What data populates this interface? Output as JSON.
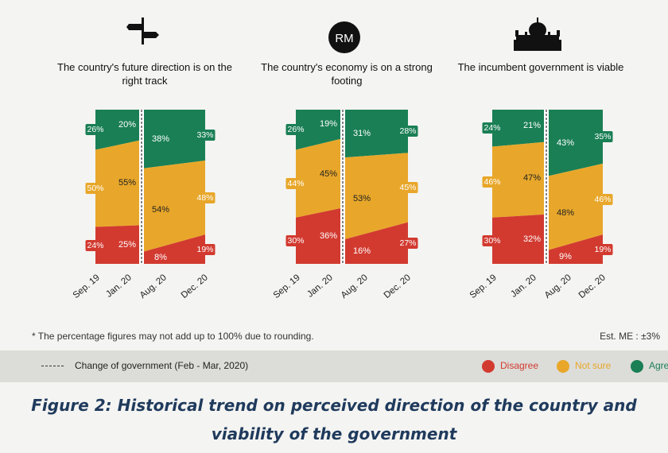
{
  "colors": {
    "disagree": "#d23a30",
    "not_sure": "#e8a72a",
    "agree": "#1a7f55",
    "divider": "#ffffff"
  },
  "chart_data": [
    {
      "type": "area",
      "title": "The country's future direction is on the right track",
      "icon": "signpost-icon",
      "categories": [
        "Sep. 19",
        "Jan. 20",
        "Aug. 20",
        "Dec. 20"
      ],
      "series": [
        {
          "name": "Disagree",
          "values": [
            24,
            25,
            8,
            19
          ]
        },
        {
          "name": "Not sure",
          "values": [
            50,
            55,
            54,
            48
          ]
        },
        {
          "name": "Agree",
          "values": [
            26,
            20,
            38,
            33
          ]
        }
      ],
      "ylim": [
        0,
        100
      ]
    },
    {
      "type": "area",
      "title": "The country's economy is on a strong footing",
      "icon": "ringgit-icon",
      "icon_text": "RM",
      "categories": [
        "Sep. 19",
        "Jan. 20",
        "Aug. 20",
        "Dec. 20"
      ],
      "series": [
        {
          "name": "Disagree",
          "values": [
            30,
            36,
            16,
            27
          ]
        },
        {
          "name": "Not sure",
          "values": [
            44,
            45,
            53,
            45
          ]
        },
        {
          "name": "Agree",
          "values": [
            26,
            19,
            31,
            28
          ]
        }
      ],
      "ylim": [
        0,
        100
      ]
    },
    {
      "type": "area",
      "title": "The incumbent government is viable",
      "icon": "parliament-building-icon",
      "categories": [
        "Sep. 19",
        "Jan. 20",
        "Aug. 20",
        "Dec. 20"
      ],
      "series": [
        {
          "name": "Disagree",
          "values": [
            30,
            32,
            9,
            19
          ]
        },
        {
          "name": "Not sure",
          "values": [
            46,
            47,
            48,
            46
          ]
        },
        {
          "name": "Agree",
          "values": [
            24,
            21,
            43,
            35
          ]
        }
      ],
      "ylim": [
        0,
        100
      ]
    }
  ],
  "footnote": "* The percentage figures may not add up to 100% due to rounding.",
  "margin_of_error": "Est. ME : ±3%",
  "legend": {
    "divider_label": "Change of government (Feb - Mar, 2020)",
    "items": [
      "Disagree",
      "Not sure",
      "Agree"
    ]
  },
  "caption": {
    "line1": "Figure 2: Historical trend on perceived direction of the country and",
    "line2": "viability of the government"
  }
}
